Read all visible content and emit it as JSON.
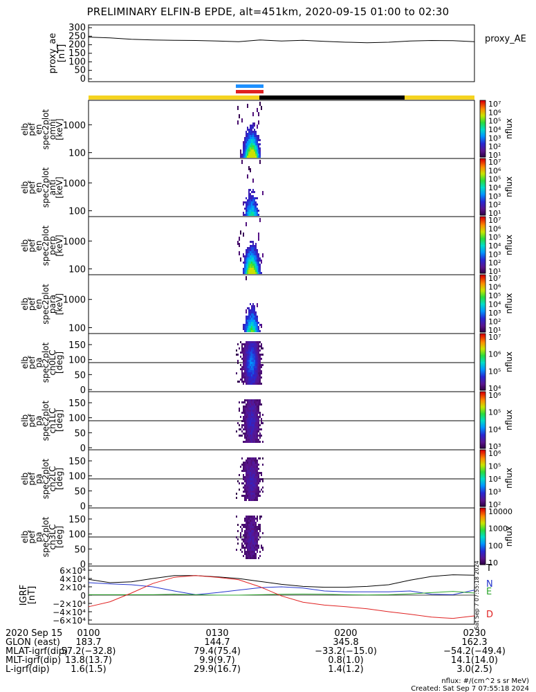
{
  "title": "PRELIMINARY ELFIN-B EPDE, alt=451km, 2020-09-15 01:00 to 02:30",
  "colors": {
    "bar_day": "#f5d320",
    "bar_night": "#000000",
    "marker_blue": "#1e90ff",
    "marker_red": "#e02020",
    "red": "#e02020",
    "blue": "#2233cc",
    "green": "#2aa52a",
    "black": "#000000"
  },
  "chart_data": [
    {
      "type": "line",
      "panel": "proxy_ae",
      "ylabel": "proxy_ae [nT]",
      "legend": "proxy_AE",
      "ylim": [
        0,
        300
      ],
      "yticks": [
        "300",
        "250",
        "200",
        "150",
        "100",
        "50",
        "0"
      ],
      "x": [
        0,
        5,
        10,
        15,
        20,
        25,
        30,
        35,
        40,
        45,
        50,
        55,
        60,
        65,
        70,
        75,
        80,
        85,
        90
      ],
      "values": [
        245,
        240,
        232,
        228,
        226,
        225,
        222,
        218,
        228,
        222,
        226,
        220,
        215,
        212,
        215,
        222,
        225,
        224,
        218
      ]
    },
    {
      "type": "heatmap",
      "panel": "omni",
      "ylabel": [
        "elb",
        "pef",
        "en",
        "spec2plot",
        "omni",
        "[keV]"
      ],
      "yticks": [
        "1000",
        "100"
      ],
      "cbar_ticks": [
        "10⁷",
        "10⁶",
        "10⁵",
        "10⁴",
        "10³",
        "10²",
        "10¹"
      ],
      "cbar_label": "nflux"
    },
    {
      "type": "heatmap",
      "panel": "anti",
      "ylabel": [
        "elb",
        "pef",
        "en",
        "spec2plot",
        "anti",
        "[keV]"
      ],
      "yticks": [
        "1000",
        "100"
      ],
      "cbar_ticks": [
        "10⁷",
        "10⁶",
        "10⁵",
        "10⁴",
        "10³",
        "10²",
        "10¹"
      ],
      "cbar_label": "nflux"
    },
    {
      "type": "heatmap",
      "panel": "perp",
      "ylabel": [
        "elb",
        "pef",
        "en",
        "spec2plot",
        "perp",
        "[keV]"
      ],
      "yticks": [
        "1000",
        "100"
      ],
      "cbar_ticks": [
        "10⁷",
        "10⁶",
        "10⁵",
        "10⁴",
        "10³",
        "10²",
        "10¹"
      ],
      "cbar_label": "nflux"
    },
    {
      "type": "heatmap",
      "panel": "para",
      "ylabel": [
        "elb",
        "pef",
        "en",
        "spec2plot",
        "para",
        "[keV]"
      ],
      "yticks": [
        "1000",
        "100"
      ],
      "cbar_ticks": [
        "10⁷",
        "10⁶",
        "10⁵",
        "10⁴",
        "10³",
        "10²",
        "10¹"
      ],
      "cbar_label": "nflux"
    },
    {
      "type": "heatmap",
      "panel": "ch0LC",
      "ylabel": [
        "elb",
        "pef",
        "pa",
        "spec2plot",
        "ch0LC",
        "[deg]"
      ],
      "yticks": [
        "150",
        "100",
        "50",
        "0"
      ],
      "cbar_ticks": [
        "10⁷",
        "10⁶",
        "10⁵",
        "10⁴"
      ],
      "cbar_label": "nflux"
    },
    {
      "type": "heatmap",
      "panel": "ch1LC",
      "ylabel": [
        "elb",
        "pef",
        "pa",
        "spec2plot",
        "ch1LC",
        "[deg]"
      ],
      "yticks": [
        "150",
        "100",
        "50",
        "0"
      ],
      "cbar_ticks": [
        "10⁶",
        "10⁵",
        "10⁴",
        "10³"
      ],
      "cbar_label": "nflux"
    },
    {
      "type": "heatmap",
      "panel": "ch2LC",
      "ylabel": [
        "elb",
        "pef",
        "pa",
        "spec2plot",
        "ch2LC",
        "[deg]"
      ],
      "yticks": [
        "150",
        "100",
        "50",
        "0"
      ],
      "cbar_ticks": [
        "10⁶",
        "10⁵",
        "10⁴",
        "10³",
        "10²"
      ],
      "cbar_label": "nflux"
    },
    {
      "type": "heatmap",
      "panel": "ch3LC",
      "ylabel": [
        "elb",
        "pef",
        "pa",
        "spec2plot",
        "ch3LC",
        "[deg]"
      ],
      "yticks": [
        "150",
        "100",
        "50",
        "0"
      ],
      "cbar_ticks": [
        "10000",
        "1000",
        "100",
        "10"
      ],
      "cbar_label": "nflux"
    },
    {
      "type": "line",
      "panel": "igrf",
      "ylabel": "IGRF [nT]",
      "ylim": [
        -60000,
        60000
      ],
      "yticks": [
        "6×10⁴",
        "4×10⁴",
        "2×10⁴",
        "0",
        "−2×10⁴",
        "−4×10⁴",
        "−6×10⁴"
      ],
      "x": [
        0,
        5,
        10,
        15,
        20,
        25,
        30,
        35,
        40,
        45,
        50,
        55,
        60,
        65,
        70,
        75,
        80,
        85,
        90
      ],
      "series": [
        {
          "name": "T",
          "values": [
            38000,
            30000,
            32000,
            40000,
            47000,
            47000,
            44000,
            40000,
            33000,
            26000,
            21000,
            19000,
            19000,
            21000,
            25000,
            36000,
            45000,
            49000,
            48000
          ]
        },
        {
          "name": "N",
          "values": [
            30000,
            27000,
            25000,
            20000,
            10000,
            1000,
            6000,
            12000,
            18000,
            20000,
            17000,
            10000,
            8000,
            8000,
            8000,
            10000,
            2000,
            1000,
            12000
          ]
        },
        {
          "name": "E",
          "values": [
            1000,
            1000,
            1000,
            1000,
            2000,
            1000,
            0,
            0,
            1000,
            2000,
            2500,
            2000,
            1000,
            500,
            1000,
            3000,
            6000,
            9000,
            5000
          ]
        },
        {
          "name": "D",
          "values": [
            -28000,
            -16000,
            5000,
            28000,
            43000,
            47000,
            43000,
            37000,
            20000,
            -2000,
            -17000,
            -24000,
            -28000,
            -33000,
            -40000,
            -46000,
            -53000,
            -56000,
            -50000
          ]
        }
      ]
    }
  ],
  "xticks": [
    "0100",
    "0130",
    "0200",
    "0230"
  ],
  "orbit_table": {
    "rows": [
      {
        "label": "2020 Sep 15",
        "values": [
          "",
          "",
          "",
          ""
        ]
      },
      {
        "label": "GLON (east)",
        "values": [
          "183.7",
          "144.7",
          "345.8",
          "162.3"
        ]
      },
      {
        "label": "MLAT-igrf(dip)",
        "values": [
          "57.2(−32.8)",
          "79.4(75.4)",
          "−33.2(−15.0)",
          "−54.2(−49.4)"
        ]
      },
      {
        "label": "MLT-igrf(dip)",
        "values": [
          "13.8(13.7)",
          "9.9(9.7)",
          "0.8(1.0)",
          "14.1(14.0)"
        ]
      },
      {
        "label": "L-igrf(dip)",
        "values": [
          "1.6(1.5)",
          "29.9(16.7)",
          "1.4(1.2)",
          "3.0(2.5)"
        ]
      }
    ]
  },
  "footer": {
    "units": "nflux: #/(cm^2 s sr MeV)",
    "created": "Created: Sat Sep  7 07:55:18 2024",
    "side_stamp": "Sat Sep  7 07:55:18 2024"
  }
}
